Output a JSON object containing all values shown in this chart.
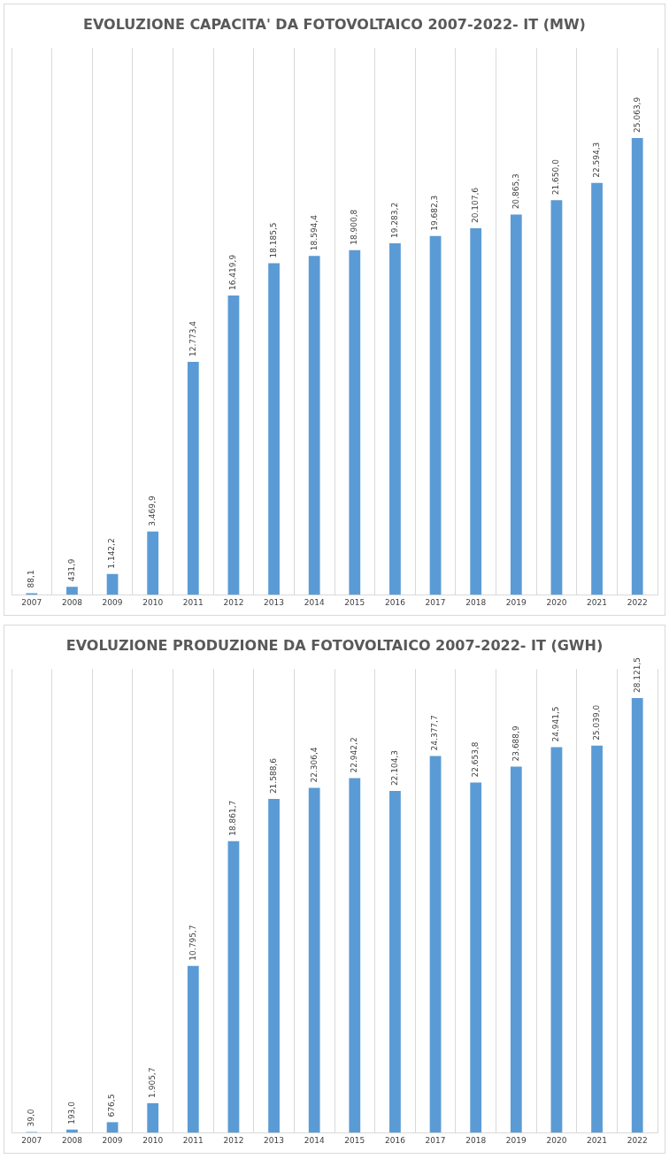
{
  "chart_data": [
    {
      "type": "bar",
      "title": "EVOLUZIONE CAPACITA' DA FOTOVOLTAICO 2007-2022- IT (MW)",
      "categories": [
        "2007",
        "2008",
        "2009",
        "2010",
        "2011",
        "2012",
        "2013",
        "2014",
        "2015",
        "2016",
        "2017",
        "2018",
        "2019",
        "2020",
        "2021",
        "2022"
      ],
      "values": [
        88.1,
        431.9,
        1142.2,
        3469.9,
        12773.4,
        16419.9,
        18185.5,
        18594.4,
        18900.8,
        19283.2,
        19682.3,
        20107.6,
        20865.3,
        21650.0,
        22594.3,
        25063.9
      ],
      "value_labels": [
        "88,1",
        "431,9",
        "1.142,2",
        "3.469,9",
        "12.773,4",
        "16.419,9",
        "18.185,5",
        "18.594,4",
        "18.900,8",
        "19.283,2",
        "19.682,3",
        "20.107,6",
        "20.865,3",
        "21.650,0",
        "22.594,3",
        "25.063,9"
      ],
      "color": "#5b9bd5",
      "grid": "x",
      "legend": false
    },
    {
      "type": "bar",
      "title": "EVOLUZIONE PRODUZIONE DA FOTOVOLTAICO 2007-2022- IT (GWH)",
      "categories": [
        "2007",
        "2008",
        "2009",
        "2010",
        "2011",
        "2012",
        "2013",
        "2014",
        "2015",
        "2016",
        "2017",
        "2018",
        "2019",
        "2020",
        "2021",
        "2022"
      ],
      "values": [
        39.0,
        193.0,
        676.5,
        1905.7,
        10795.7,
        18861.7,
        21588.6,
        22306.4,
        22942.2,
        22104.3,
        24377.7,
        22653.8,
        23688.9,
        24941.5,
        25039.0,
        28121.5
      ],
      "value_labels": [
        "39,0",
        "193,0",
        "676,5",
        "1.905,7",
        "10.795,7",
        "18.861,7",
        "21.588,6",
        "22.306,4",
        "22.942,2",
        "22.104,3",
        "24.377,7",
        "22.653,8",
        "23.688,9",
        "24.941,5",
        "25.039,0",
        "28.121,5"
      ],
      "color": "#5b9bd5",
      "grid": "x",
      "legend": false
    }
  ]
}
